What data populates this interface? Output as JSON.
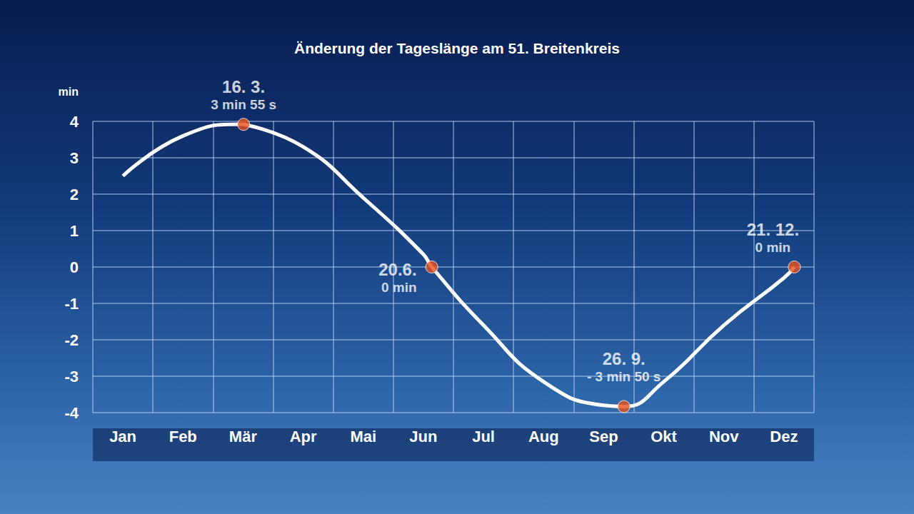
{
  "chart_data": {
    "type": "line",
    "title": "Änderung der Tageslänge am 51. Breitenkreis",
    "y_label": "min",
    "categories": [
      "Jan",
      "Feb",
      "Mär",
      "Apr",
      "Mai",
      "Jun",
      "Jul",
      "Aug",
      "Sep",
      "Okt",
      "Nov",
      "Dez"
    ],
    "values": [
      2.5,
      3.6,
      3.92,
      3.3,
      1.9,
      0.35,
      -1.6,
      -3.15,
      -3.8,
      -3.15,
      -1.6,
      -0.3
    ],
    "color": "#ffffff",
    "ylim": [
      -4,
      4
    ],
    "yticks": [
      -4,
      -3,
      -2,
      -1,
      0,
      1,
      2,
      3,
      4
    ],
    "grid": true,
    "annotations": [
      {
        "label": "16. 3.",
        "text": "3 min 55 s",
        "category": "Mär",
        "day": 16,
        "value": 3.917,
        "color": "#e8501c"
      },
      {
        "label": "20.6.",
        "text": "0 min",
        "category": "Jun",
        "day": 20,
        "value": 0,
        "color": "#e8501c"
      },
      {
        "label": "26. 9.",
        "text": "- 3 min 50 s",
        "category": "Sep",
        "day": 26,
        "value": -3.833,
        "color": "#e8501c"
      },
      {
        "label": "21. 12.",
        "text": "0 min",
        "category": "Dez",
        "day": 21,
        "value": 0,
        "color": "#e8501c"
      }
    ]
  }
}
